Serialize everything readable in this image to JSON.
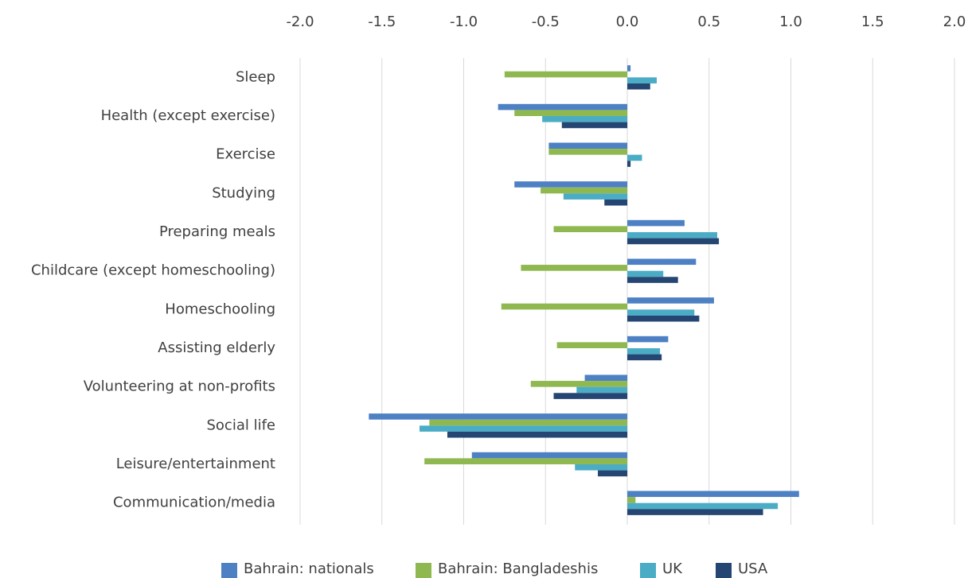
{
  "chart_data": {
    "type": "barh",
    "categories": [
      "Sleep",
      "Health (except exercise)",
      "Exercise",
      "Studying",
      "Preparing meals",
      "Childcare (except homeschooling)",
      "Homeschooling",
      "Assisting elderly",
      "Volunteering at non-profits",
      "Social life",
      "Leisure/entertainment",
      "Communication/media"
    ],
    "series": [
      {
        "name": "Bahrain: nationals",
        "color": "#4e80c4",
        "values": [
          0.02,
          -0.79,
          -0.48,
          -0.69,
          0.35,
          0.42,
          0.53,
          0.25,
          -0.26,
          -1.58,
          -0.95,
          1.05
        ]
      },
      {
        "name": "Bahrain: Bangladeshis",
        "color": "#8fb850",
        "values": [
          -0.75,
          -0.69,
          -0.48,
          -0.53,
          -0.45,
          -0.65,
          -0.77,
          -0.43,
          -0.59,
          -1.21,
          -1.24,
          0.05
        ]
      },
      {
        "name": "UK",
        "color": "#4bacc6",
        "values": [
          0.18,
          -0.52,
          0.09,
          -0.39,
          0.55,
          0.22,
          0.41,
          0.2,
          -0.31,
          -1.27,
          -0.32,
          0.92
        ]
      },
      {
        "name": "USA",
        "color": "#254672",
        "values": [
          0.14,
          -0.4,
          0.02,
          -0.14,
          0.56,
          0.31,
          0.44,
          0.21,
          -0.45,
          -1.1,
          -0.18,
          0.83
        ]
      }
    ],
    "xlim": [
      -2,
      2
    ],
    "xticks": [
      {
        "value": -2,
        "label": "-2.0"
      },
      -1.5,
      {
        "value": -1,
        "label": "-1.0"
      },
      -0.5,
      {
        "value": 0,
        "label": "0.0"
      },
      0.5,
      {
        "value": 1,
        "label": "1.0"
      },
      1.5,
      {
        "value": 2,
        "label": "2.0"
      }
    ],
    "grid": true,
    "legend": "bottom"
  }
}
